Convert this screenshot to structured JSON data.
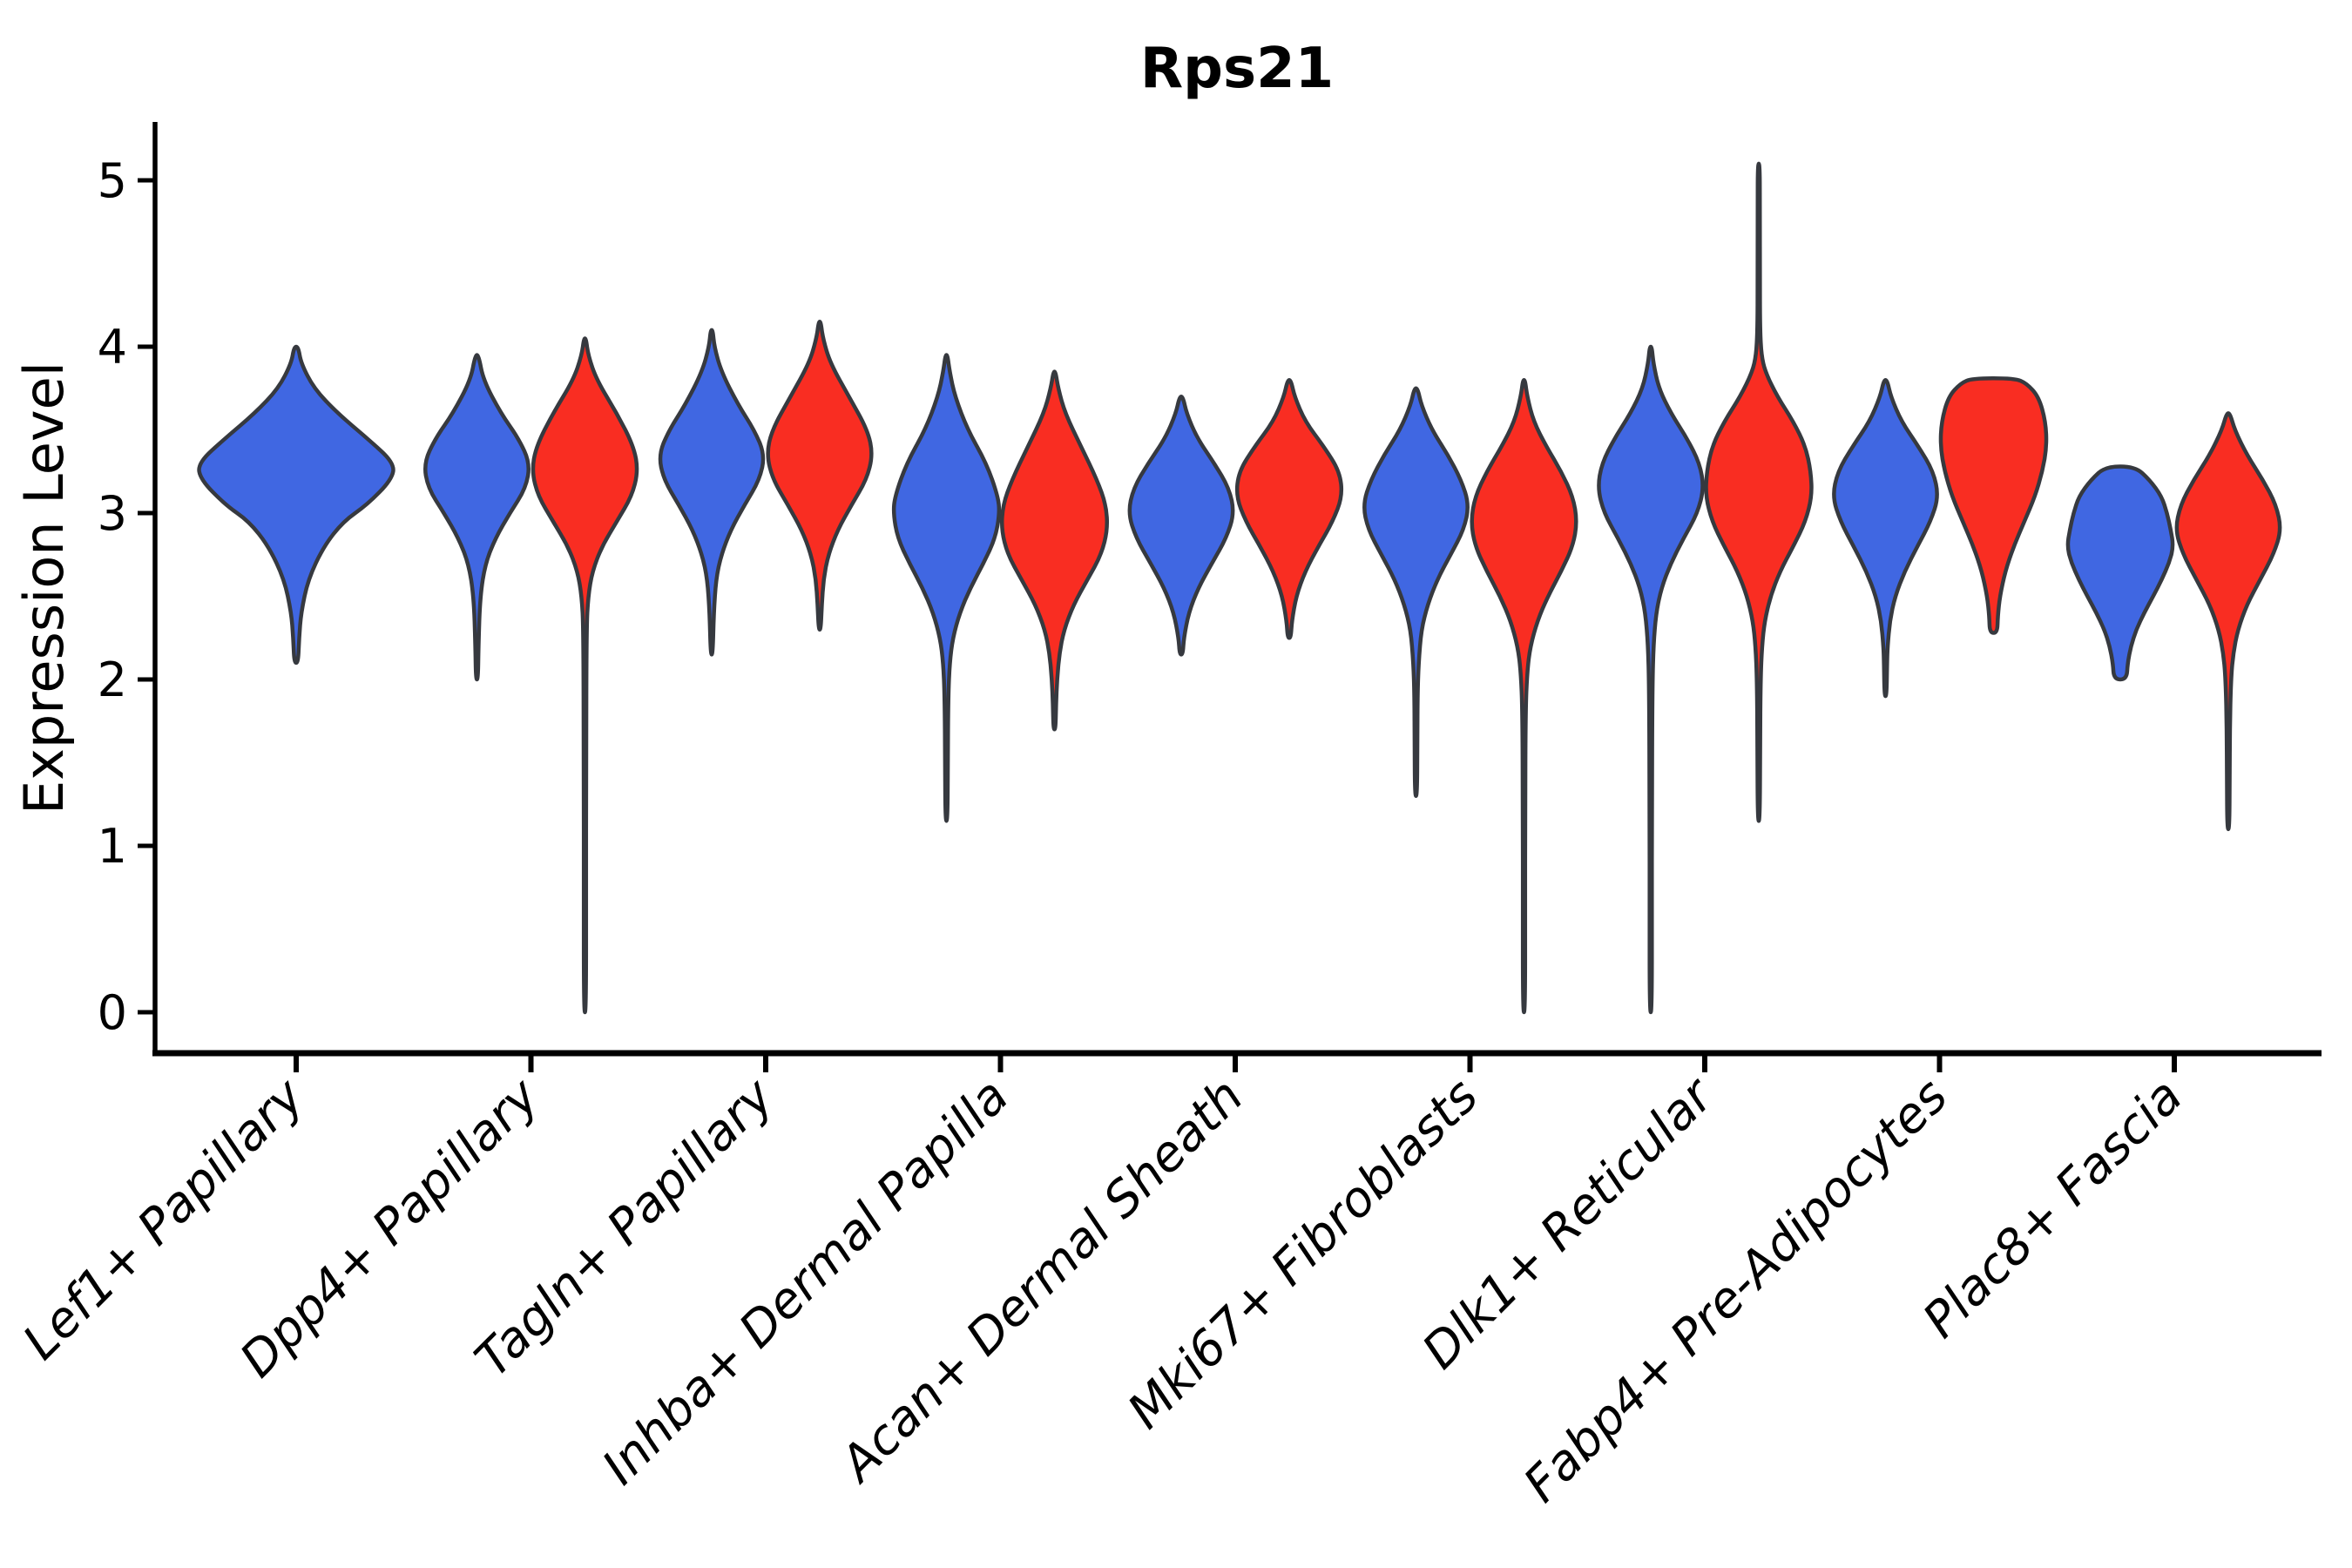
{
  "title": "Rps21",
  "chart_data": {
    "type": "violin",
    "title": "Rps21",
    "xlabel": "",
    "ylabel": "Expression Level",
    "ylim": [
      -0.25,
      5.35
    ],
    "yticks": [
      0,
      1,
      2,
      3,
      4,
      5
    ],
    "grid": false,
    "legend_position": "none",
    "colors": {
      "blue": "#4067E2",
      "red": "#F92D22",
      "outline": "#36393F"
    },
    "categories": [
      "Lef1+ Papillary",
      "Dpp4+ Papillary",
      "Tagln+ Papillary",
      "Inhba+ Dermal Papilla",
      "Acan+ Dermal Sheath",
      "Mki67+ Fibroblasts",
      "Dlk1+ Reticular",
      "Fabp4+ Pre-Adipocytes",
      "Plac8+ Fascia"
    ],
    "violins": [
      {
        "category": "Lef1+ Papillary",
        "color": "blue",
        "span": "full",
        "min": 2.1,
        "peak": 3.3,
        "max": 4.0,
        "profile": [
          [
            4.0,
            0.02
          ],
          [
            3.9,
            0.05
          ],
          [
            3.75,
            0.18
          ],
          [
            3.6,
            0.42
          ],
          [
            3.45,
            0.72
          ],
          [
            3.3,
            1.0
          ],
          [
            3.2,
            0.97
          ],
          [
            3.05,
            0.72
          ],
          [
            2.95,
            0.48
          ],
          [
            2.8,
            0.28
          ],
          [
            2.6,
            0.12
          ],
          [
            2.4,
            0.05
          ],
          [
            2.25,
            0.03
          ],
          [
            2.1,
            0.02
          ]
        ]
      },
      {
        "category": "Dpp4+ Papillary",
        "color": "blue",
        "span": "left",
        "min": 2.0,
        "peak": 3.3,
        "max": 3.95,
        "profile": [
          [
            3.95,
            0.03
          ],
          [
            3.8,
            0.12
          ],
          [
            3.6,
            0.45
          ],
          [
            3.45,
            0.78
          ],
          [
            3.3,
            1.0
          ],
          [
            3.15,
            0.92
          ],
          [
            3.0,
            0.62
          ],
          [
            2.85,
            0.35
          ],
          [
            2.7,
            0.16
          ],
          [
            2.5,
            0.06
          ],
          [
            2.2,
            0.03
          ],
          [
            2.0,
            0.02
          ]
        ]
      },
      {
        "category": "Dpp4+ Papillary",
        "color": "red",
        "span": "right",
        "min": 0.0,
        "peak": 3.25,
        "max": 4.05,
        "profile": [
          [
            4.05,
            0.02
          ],
          [
            3.95,
            0.06
          ],
          [
            3.8,
            0.22
          ],
          [
            3.6,
            0.6
          ],
          [
            3.4,
            0.92
          ],
          [
            3.25,
            1.0
          ],
          [
            3.1,
            0.88
          ],
          [
            2.95,
            0.6
          ],
          [
            2.8,
            0.32
          ],
          [
            2.65,
            0.14
          ],
          [
            2.5,
            0.06
          ],
          [
            2.3,
            0.03
          ],
          [
            1.5,
            0.022
          ],
          [
            0.7,
            0.022
          ],
          [
            0.0,
            0.02
          ]
        ]
      },
      {
        "category": "Tagln+ Papillary",
        "color": "blue",
        "span": "left",
        "min": 2.15,
        "peak": 3.35,
        "max": 4.1,
        "profile": [
          [
            4.1,
            0.02
          ],
          [
            4.0,
            0.05
          ],
          [
            3.85,
            0.18
          ],
          [
            3.65,
            0.5
          ],
          [
            3.5,
            0.8
          ],
          [
            3.35,
            1.0
          ],
          [
            3.2,
            0.9
          ],
          [
            3.05,
            0.62
          ],
          [
            2.9,
            0.36
          ],
          [
            2.75,
            0.18
          ],
          [
            2.6,
            0.08
          ],
          [
            2.4,
            0.04
          ],
          [
            2.15,
            0.02
          ]
        ]
      },
      {
        "category": "Tagln+ Papillary",
        "color": "red",
        "span": "right",
        "min": 2.3,
        "peak": 3.35,
        "max": 4.15,
        "profile": [
          [
            4.15,
            0.02
          ],
          [
            4.05,
            0.06
          ],
          [
            3.9,
            0.2
          ],
          [
            3.7,
            0.55
          ],
          [
            3.5,
            0.9
          ],
          [
            3.35,
            1.0
          ],
          [
            3.2,
            0.88
          ],
          [
            3.05,
            0.6
          ],
          [
            2.9,
            0.34
          ],
          [
            2.75,
            0.16
          ],
          [
            2.6,
            0.07
          ],
          [
            2.45,
            0.04
          ],
          [
            2.3,
            0.02
          ]
        ]
      },
      {
        "category": "Inhba+ Dermal Papilla",
        "color": "blue",
        "span": "left",
        "min": 1.15,
        "peak": 3.0,
        "max": 3.95,
        "profile": [
          [
            3.95,
            0.02
          ],
          [
            3.85,
            0.06
          ],
          [
            3.7,
            0.16
          ],
          [
            3.5,
            0.4
          ],
          [
            3.3,
            0.75
          ],
          [
            3.1,
            0.97
          ],
          [
            3.0,
            1.0
          ],
          [
            2.85,
            0.92
          ],
          [
            2.7,
            0.7
          ],
          [
            2.55,
            0.45
          ],
          [
            2.4,
            0.25
          ],
          [
            2.25,
            0.12
          ],
          [
            2.1,
            0.06
          ],
          [
            1.9,
            0.035
          ],
          [
            1.5,
            0.025
          ],
          [
            1.15,
            0.02
          ]
        ]
      },
      {
        "category": "Inhba+ Dermal Papilla",
        "color": "red",
        "span": "right",
        "min": 1.7,
        "peak": 2.9,
        "max": 3.85,
        "profile": [
          [
            3.85,
            0.02
          ],
          [
            3.75,
            0.07
          ],
          [
            3.6,
            0.2
          ],
          [
            3.4,
            0.5
          ],
          [
            3.2,
            0.8
          ],
          [
            3.05,
            0.97
          ],
          [
            2.9,
            1.0
          ],
          [
            2.75,
            0.88
          ],
          [
            2.6,
            0.62
          ],
          [
            2.45,
            0.36
          ],
          [
            2.3,
            0.18
          ],
          [
            2.15,
            0.09
          ],
          [
            2.0,
            0.05
          ],
          [
            1.85,
            0.03
          ],
          [
            1.7,
            0.02
          ]
        ]
      },
      {
        "category": "Acan+ Dermal Sheath",
        "color": "blue",
        "span": "left",
        "min": 2.15,
        "peak": 3.0,
        "max": 3.7,
        "profile": [
          [
            3.7,
            0.03
          ],
          [
            3.6,
            0.1
          ],
          [
            3.45,
            0.3
          ],
          [
            3.3,
            0.62
          ],
          [
            3.15,
            0.9
          ],
          [
            3.0,
            1.0
          ],
          [
            2.85,
            0.85
          ],
          [
            2.7,
            0.58
          ],
          [
            2.55,
            0.32
          ],
          [
            2.4,
            0.14
          ],
          [
            2.25,
            0.05
          ],
          [
            2.15,
            0.03
          ]
        ]
      },
      {
        "category": "Acan+ Dermal Sheath",
        "color": "red",
        "span": "right",
        "min": 2.25,
        "peak": 3.1,
        "max": 3.8,
        "profile": [
          [
            3.8,
            0.03
          ],
          [
            3.7,
            0.1
          ],
          [
            3.55,
            0.3
          ],
          [
            3.4,
            0.65
          ],
          [
            3.25,
            0.95
          ],
          [
            3.1,
            1.0
          ],
          [
            2.95,
            0.82
          ],
          [
            2.8,
            0.55
          ],
          [
            2.65,
            0.3
          ],
          [
            2.5,
            0.13
          ],
          [
            2.35,
            0.05
          ],
          [
            2.25,
            0.03
          ]
        ]
      },
      {
        "category": "Mki67+ Fibroblasts",
        "color": "blue",
        "span": "left",
        "min": 1.3,
        "peak": 3.05,
        "max": 3.75,
        "profile": [
          [
            3.75,
            0.03
          ],
          [
            3.65,
            0.1
          ],
          [
            3.5,
            0.3
          ],
          [
            3.35,
            0.6
          ],
          [
            3.2,
            0.85
          ],
          [
            3.05,
            1.0
          ],
          [
            2.9,
            0.9
          ],
          [
            2.75,
            0.65
          ],
          [
            2.6,
            0.4
          ],
          [
            2.45,
            0.22
          ],
          [
            2.3,
            0.1
          ],
          [
            2.1,
            0.05
          ],
          [
            1.9,
            0.03
          ],
          [
            1.6,
            0.025
          ],
          [
            1.3,
            0.02
          ]
        ]
      },
      {
        "category": "Mki67+ Fibroblasts",
        "color": "red",
        "span": "right",
        "min": 0.0,
        "peak": 2.95,
        "max": 3.8,
        "profile": [
          [
            3.8,
            0.02
          ],
          [
            3.7,
            0.06
          ],
          [
            3.55,
            0.18
          ],
          [
            3.4,
            0.42
          ],
          [
            3.25,
            0.7
          ],
          [
            3.1,
            0.92
          ],
          [
            2.95,
            1.0
          ],
          [
            2.8,
            0.92
          ],
          [
            2.65,
            0.7
          ],
          [
            2.5,
            0.45
          ],
          [
            2.35,
            0.25
          ],
          [
            2.2,
            0.12
          ],
          [
            2.05,
            0.06
          ],
          [
            1.8,
            0.03
          ],
          [
            1.2,
            0.022
          ],
          [
            0.6,
            0.022
          ],
          [
            0.0,
            0.02
          ]
        ]
      },
      {
        "category": "Dlk1+ Reticular",
        "color": "blue",
        "span": "left",
        "min": 0.0,
        "peak": 3.15,
        "max": 4.0,
        "profile": [
          [
            4.0,
            0.02
          ],
          [
            3.9,
            0.05
          ],
          [
            3.75,
            0.15
          ],
          [
            3.6,
            0.38
          ],
          [
            3.45,
            0.68
          ],
          [
            3.3,
            0.92
          ],
          [
            3.15,
            1.0
          ],
          [
            3.0,
            0.88
          ],
          [
            2.85,
            0.62
          ],
          [
            2.7,
            0.38
          ],
          [
            2.55,
            0.2
          ],
          [
            2.4,
            0.1
          ],
          [
            2.2,
            0.05
          ],
          [
            1.9,
            0.03
          ],
          [
            1.2,
            0.022
          ],
          [
            0.6,
            0.022
          ],
          [
            0.0,
            0.02
          ]
        ]
      },
      {
        "category": "Dlk1+ Reticular",
        "color": "red",
        "span": "right",
        "min": 1.15,
        "peak": 3.1,
        "max": 5.1,
        "profile": [
          [
            5.1,
            0.02
          ],
          [
            4.8,
            0.02
          ],
          [
            4.4,
            0.022
          ],
          [
            4.1,
            0.025
          ],
          [
            3.95,
            0.05
          ],
          [
            3.85,
            0.12
          ],
          [
            3.7,
            0.35
          ],
          [
            3.55,
            0.65
          ],
          [
            3.4,
            0.88
          ],
          [
            3.25,
            0.98
          ],
          [
            3.1,
            1.0
          ],
          [
            2.95,
            0.88
          ],
          [
            2.8,
            0.65
          ],
          [
            2.65,
            0.4
          ],
          [
            2.5,
            0.22
          ],
          [
            2.35,
            0.11
          ],
          [
            2.2,
            0.06
          ],
          [
            2.0,
            0.035
          ],
          [
            1.6,
            0.025
          ],
          [
            1.15,
            0.02
          ]
        ]
      },
      {
        "category": "Fabp4+ Pre-Adipocytes",
        "color": "blue",
        "span": "left",
        "min": 1.9,
        "peak": 3.1,
        "max": 3.8,
        "profile": [
          [
            3.8,
            0.03
          ],
          [
            3.7,
            0.1
          ],
          [
            3.55,
            0.3
          ],
          [
            3.4,
            0.62
          ],
          [
            3.25,
            0.9
          ],
          [
            3.1,
            1.0
          ],
          [
            2.95,
            0.85
          ],
          [
            2.8,
            0.6
          ],
          [
            2.65,
            0.36
          ],
          [
            2.5,
            0.18
          ],
          [
            2.35,
            0.08
          ],
          [
            2.2,
            0.04
          ],
          [
            2.1,
            0.03
          ],
          [
            1.9,
            0.02
          ]
        ]
      },
      {
        "category": "Fabp4+ Pre-Adipocytes",
        "color": "red",
        "span": "right",
        "min": 2.28,
        "peak": 3.4,
        "max": 3.81,
        "profile": [
          [
            3.81,
            0.4
          ],
          [
            3.78,
            0.62
          ],
          [
            3.7,
            0.85
          ],
          [
            3.55,
            0.98
          ],
          [
            3.4,
            1.0
          ],
          [
            3.25,
            0.92
          ],
          [
            3.1,
            0.78
          ],
          [
            2.95,
            0.58
          ],
          [
            2.8,
            0.38
          ],
          [
            2.65,
            0.22
          ],
          [
            2.5,
            0.12
          ],
          [
            2.38,
            0.08
          ],
          [
            2.28,
            0.07
          ]
        ]
      },
      {
        "category": "Plac8+ Fascia",
        "color": "blue",
        "span": "left",
        "min": 2.0,
        "peak": 2.8,
        "max": 3.28,
        "profile": [
          [
            3.28,
            0.28
          ],
          [
            3.2,
            0.55
          ],
          [
            3.1,
            0.78
          ],
          [
            3.0,
            0.88
          ],
          [
            2.9,
            0.95
          ],
          [
            2.8,
            1.0
          ],
          [
            2.7,
            0.92
          ],
          [
            2.6,
            0.78
          ],
          [
            2.5,
            0.62
          ],
          [
            2.4,
            0.45
          ],
          [
            2.3,
            0.3
          ],
          [
            2.2,
            0.2
          ],
          [
            2.1,
            0.14
          ],
          [
            2.0,
            0.12
          ]
        ]
      },
      {
        "category": "Plac8+ Fascia",
        "color": "red",
        "span": "right",
        "min": 1.1,
        "peak": 2.9,
        "max": 3.6,
        "profile": [
          [
            3.6,
            0.03
          ],
          [
            3.5,
            0.12
          ],
          [
            3.35,
            0.35
          ],
          [
            3.2,
            0.65
          ],
          [
            3.05,
            0.9
          ],
          [
            2.9,
            1.0
          ],
          [
            2.75,
            0.85
          ],
          [
            2.6,
            0.6
          ],
          [
            2.45,
            0.35
          ],
          [
            2.3,
            0.18
          ],
          [
            2.15,
            0.09
          ],
          [
            2.0,
            0.05
          ],
          [
            1.7,
            0.03
          ],
          [
            1.4,
            0.025
          ],
          [
            1.1,
            0.02
          ]
        ]
      }
    ]
  }
}
